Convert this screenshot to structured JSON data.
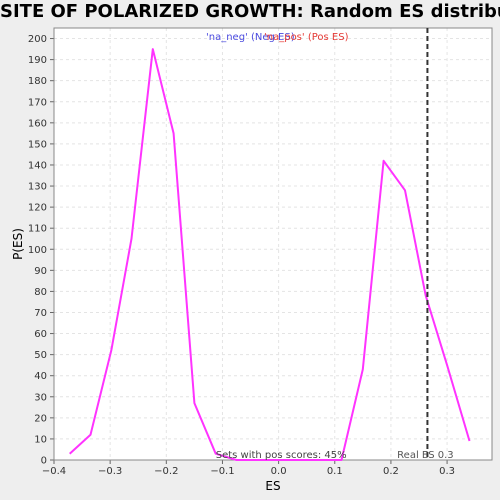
{
  "chart_data": {
    "type": "line",
    "title": "SITE OF POLARIZED GROWTH: Random ES distribution",
    "xlabel": "ES",
    "ylabel": "P(ES)",
    "xlim": [
      -0.4,
      0.38
    ],
    "ylim": [
      0,
      205
    ],
    "x_ticks": [
      -0.4,
      -0.3,
      -0.2,
      -0.1,
      0.0,
      0.1,
      0.2,
      0.3
    ],
    "x_tick_labels": [
      "−0.4",
      "−0.3",
      "−0.2",
      "−0.1",
      "0.0",
      "0.1",
      "0.2",
      "0.3"
    ],
    "y_ticks": [
      0,
      10,
      20,
      30,
      40,
      50,
      60,
      70,
      80,
      90,
      100,
      110,
      120,
      130,
      140,
      150,
      160,
      170,
      180,
      190,
      200
    ],
    "grid": true,
    "legend": [
      {
        "label": "'na_neg' (Neg ES)",
        "color": "#4a4adf"
      },
      {
        "label": "'na_pos' (Pos ES)",
        "color": "#e53935"
      }
    ],
    "series": [
      {
        "color": "#ff33ff",
        "x": [
          -0.372,
          -0.335,
          -0.298,
          -0.262,
          -0.224,
          -0.187,
          -0.15,
          -0.112,
          -0.075,
          -0.038,
          0.0,
          0.038,
          0.075,
          0.112,
          0.15,
          0.187,
          0.225,
          0.262,
          0.3,
          0.34
        ],
        "y": [
          3,
          12,
          52,
          105,
          195,
          155,
          27,
          3,
          0,
          0,
          0,
          0,
          0,
          0,
          43,
          142,
          128,
          78,
          45,
          9
        ]
      }
    ],
    "real_es": {
      "x": 0.265,
      "label": "Real ES 0.3"
    },
    "annotation": "Sets with pos scores: 45%"
  }
}
